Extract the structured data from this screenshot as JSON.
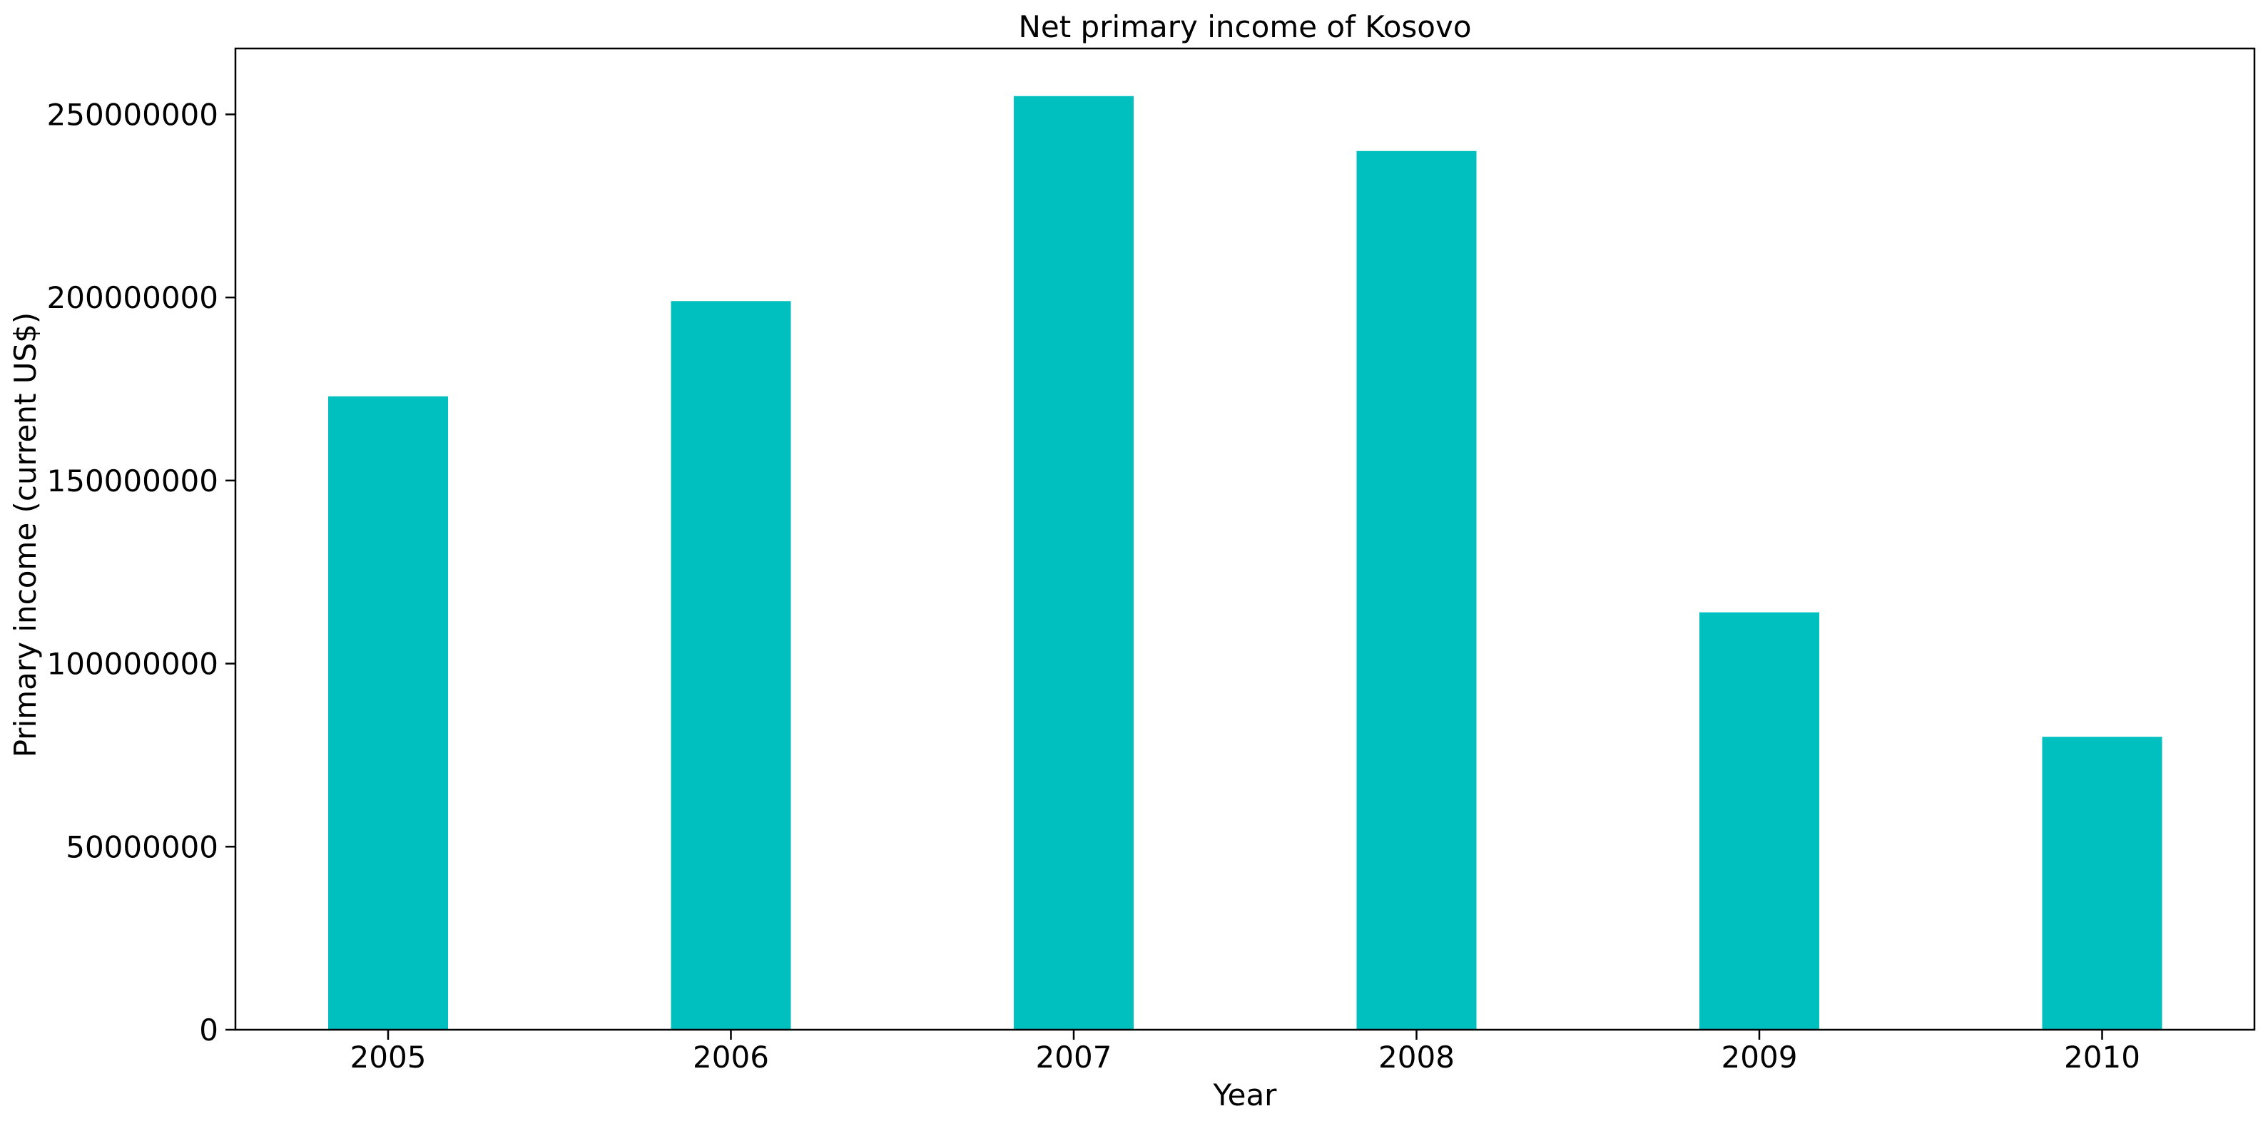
{
  "chart_data": {
    "type": "bar",
    "title": "Net primary income of Kosovo",
    "xlabel": "Year",
    "ylabel": "Primary income (current US$)",
    "categories": [
      "2005",
      "2006",
      "2007",
      "2008",
      "2009",
      "2010"
    ],
    "series": [
      {
        "values": [
          173000000,
          199000000,
          255000000,
          240000000,
          114000000,
          80000000
        ]
      }
    ],
    "ylim": [
      0,
      268000000
    ],
    "yticks": [
      0,
      50000000,
      100000000,
      150000000,
      200000000,
      250000000
    ],
    "ytick_labels": [
      "0",
      "50000000",
      "100000000",
      "150000000",
      "200000000",
      "250000000"
    ],
    "grid": false,
    "bar_color": "#00bfbf"
  }
}
